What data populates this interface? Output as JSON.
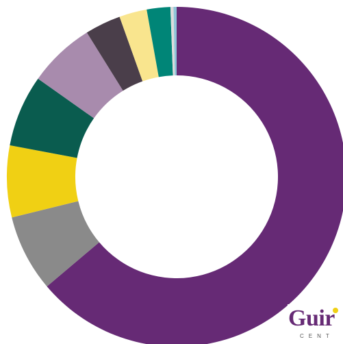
{
  "chart_data": {
    "type": "pie",
    "title": "",
    "donut": true,
    "legend": "none",
    "slices": [
      {
        "value": 65.5,
        "color": "#662a75"
      },
      {
        "value": 7.5,
        "color": "#8a8a8a"
      },
      {
        "value": 7.0,
        "color": "#f0d014"
      },
      {
        "value": 7.0,
        "color": "#0a5c4f"
      },
      {
        "value": 6.5,
        "color": "#a88bad"
      },
      {
        "value": 3.5,
        "color": "#4a3e4a"
      },
      {
        "value": 2.7,
        "color": "#f9e58e"
      },
      {
        "value": 2.3,
        "color": "#008577"
      },
      {
        "value": 0.3,
        "color": "#dcdcdc"
      },
      {
        "value": 0.3,
        "color": "#8fc6d8"
      }
    ]
  },
  "logo": {
    "word": "Guir",
    "sub": "CENT",
    "color": "#662a75",
    "dot_color": "#f0d014"
  }
}
